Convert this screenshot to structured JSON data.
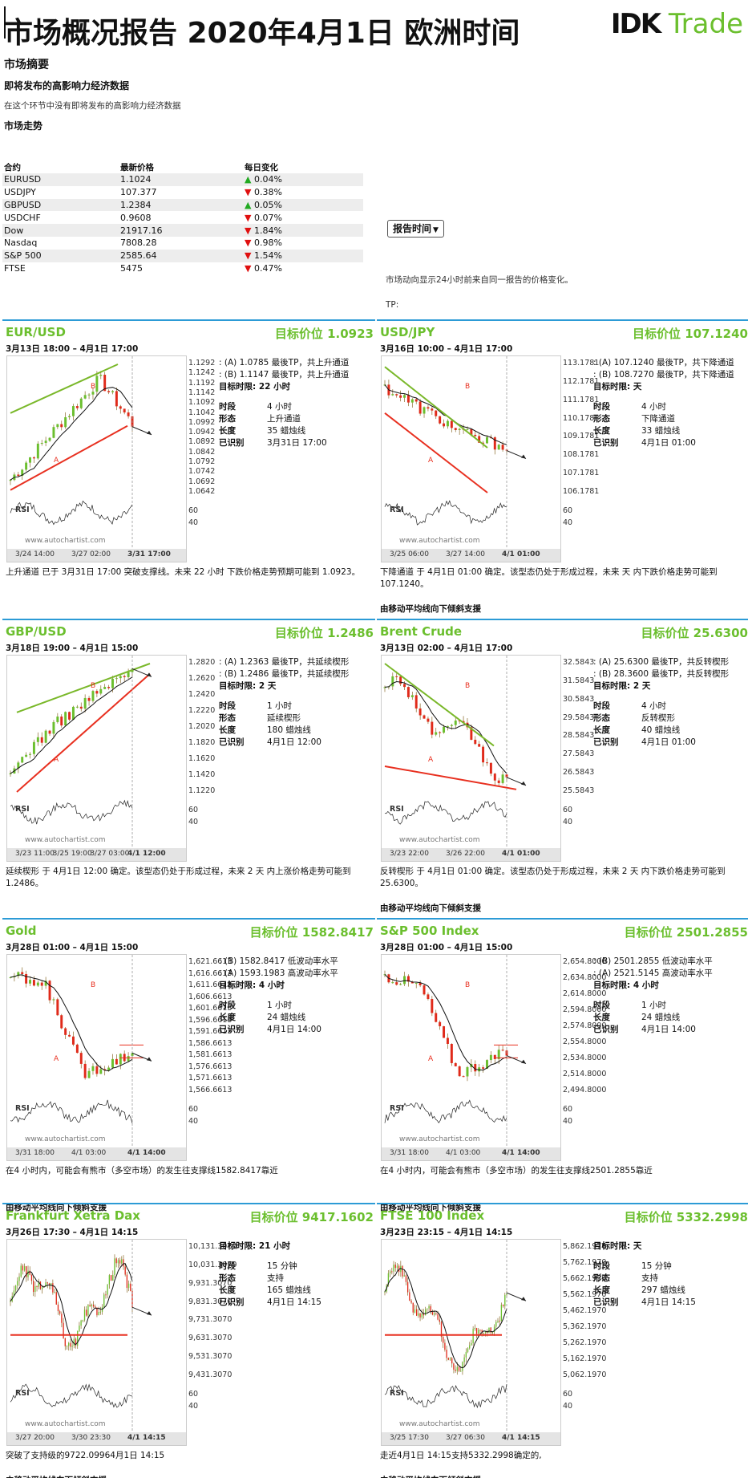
{
  "header": {
    "title": "市场概况报告 2020年4月1日 欧洲时间",
    "logo_mark": "IDK",
    "logo_trade": "Trade"
  },
  "summary": {
    "heading": "市场摘要",
    "econ_heading": "即将发布的高影响力经济数据",
    "econ_note": "在这个环节中没有即将发布的高影响力经济数据",
    "trend_heading": "市场走势",
    "columns": [
      "合约",
      "最新价格",
      "每日变化"
    ],
    "rows": [
      {
        "symbol": "EURUSD",
        "price": "1.1024",
        "dir": "up",
        "arrow": "▲",
        "change": "0.04%"
      },
      {
        "symbol": "USDJPY",
        "price": "107.377",
        "dir": "down",
        "arrow": "▼",
        "change": "0.38%"
      },
      {
        "symbol": "GBPUSD",
        "price": "1.2384",
        "dir": "up",
        "arrow": "▲",
        "change": "0.05%"
      },
      {
        "symbol": "USDCHF",
        "price": "0.9608",
        "dir": "down",
        "arrow": "▼",
        "change": "0.07%"
      },
      {
        "symbol": "Dow",
        "price": "21917.16",
        "dir": "down",
        "arrow": "▼",
        "change": "1.84%"
      },
      {
        "symbol": "Nasdaq",
        "price": "7808.28",
        "dir": "down",
        "arrow": "▼",
        "change": "0.98%"
      },
      {
        "symbol": "S&P 500",
        "price": "2585.64",
        "dir": "down",
        "arrow": "▼",
        "change": "1.54%"
      },
      {
        "symbol": "FTSE",
        "price": "5475",
        "dir": "down",
        "arrow": "▼",
        "change": "0.47%"
      }
    ],
    "report_button": "报告时间",
    "right_note": "市场动向显示24小时前来自同一报告的价格变化。",
    "tp_label": "TP:"
  },
  "panels": [
    {
      "name": "EUR/USD",
      "target": "目标价位 1.0923",
      "range": "3月13日 18:00 – 4月1日 17:00",
      "info_a": ": (A) 1.0785 最後TP，共上升通道",
      "info_b": ": (B) 1.1147 最後TP，共上升通道",
      "horizon": "目标时限: 22 小时",
      "k1": "时段",
      "v1": "4 小时",
      "k2": "形态",
      "v2": "上升通道",
      "k3": "长度",
      "v3": "35 蜡烛线",
      "k4": "已识别",
      "v4": "3月31日 17:00",
      "desc": "上升通道 已于 3月31日 17:00 突破支撑线。未来 22 小时 下跌价格走势预期可能到 1.0923。",
      "bias": "",
      "yticks": [
        "1.1292",
        "1.1242",
        "1.1192",
        "1.1142",
        "1.1092",
        "1.1042",
        "1.0992",
        "1.0942",
        "1.0892",
        "1.0842",
        "1.0792",
        "1.0742",
        "1.0692",
        "1.0642"
      ],
      "rsi_ticks": [
        "60",
        "40"
      ],
      "rsi": "RSI",
      "watermark": "www.autochartist.com",
      "xticks": [
        "3/24 14:00",
        "3/27 02:00",
        "3/31 17:00"
      ],
      "pt_a": "A",
      "pt_b": "B"
    },
    {
      "name": "USD/JPY",
      "target": "目标价位 107.1240",
      "range": "3月16日 10:00 – 4月1日 17:00",
      "info_a": ": (A) 107.1240 最後TP，共下降通道",
      "info_b": ": (B) 108.7270 最後TP，共下降通道",
      "horizon": "目标时限: 天",
      "k1": "时段",
      "v1": "4 小时",
      "k2": "形态",
      "v2": "下降通道",
      "k3": "长度",
      "v3": "33 蜡烛线",
      "k4": "已识别",
      "v4": "4月1日 01:00",
      "desc": "下降通道 于 4月1日 01:00 确定。该型态仍处于形成过程，未来 天 内下跌价格走势可能到 107.1240。",
      "bias": "由移动平均线向下倾斜支援",
      "yticks": [
        "113.1781",
        "112.1781",
        "111.1781",
        "110.1781",
        "109.1781",
        "108.1781",
        "107.1781",
        "106.1781"
      ],
      "rsi_ticks": [
        "60",
        "40"
      ],
      "rsi": "RSI",
      "watermark": "www.autochartist.com",
      "xticks": [
        "3/25 06:00",
        "3/27 14:00",
        "4/1 01:00"
      ],
      "pt_a": "A",
      "pt_b": "B"
    },
    {
      "name": "GBP/USD",
      "target": "目标价位 1.2486",
      "range": "3月18日 19:00 – 4月1日 15:00",
      "info_a": ": (A) 1.2363 最後TP，共延续楔形",
      "info_b": ": (B) 1.2486 最後TP，共延续楔形",
      "horizon": "目标时限: 2 天",
      "k1": "时段",
      "v1": "1 小时",
      "k2": "形态",
      "v2": "延续楔形",
      "k3": "长度",
      "v3": "180 蜡烛线",
      "k4": "已识别",
      "v4": "4月1日 12:00",
      "desc": "延续楔形 于 4月1日 12:00 确定。该型态仍处于形成过程，未来 2 天 内上涨价格走势可能到 1.2486。",
      "bias": "",
      "yticks": [
        "1.2820",
        "1.2620",
        "1.2420",
        "1.2220",
        "1.2020",
        "1.1820",
        "1.1620",
        "1.1420",
        "1.1220"
      ],
      "rsi_ticks": [
        "60",
        "40"
      ],
      "rsi": "RSI",
      "watermark": "www.autochartist.com",
      "xticks": [
        "3/23 11:00",
        "3/25 19:00",
        "3/27 03:00",
        "4/1 12:00"
      ],
      "pt_a": "A",
      "pt_b": "B"
    },
    {
      "name": "Brent Crude",
      "target": "目标价位 25.6300",
      "range": "3月13日 02:00 – 4月1日 17:00",
      "info_a": ": (A) 25.6300 最後TP，共反转楔形",
      "info_b": ": (B) 28.3600 最後TP，共反转楔形",
      "horizon": "目标时限: 2 天",
      "k1": "时段",
      "v1": "4 小时",
      "k2": "形态",
      "v2": "反转楔形",
      "k3": "长度",
      "v3": "40 蜡烛线",
      "k4": "已识别",
      "v4": "4月1日 01:00",
      "desc": "反转楔形 于 4月1日 01:00 确定。该型态仍处于形成过程，未来 2 天 内下跌价格走势可能到 25.6300。",
      "bias": "由移动平均线向下倾斜支援",
      "yticks": [
        "32.5843",
        "31.5843",
        "30.5843",
        "29.5843",
        "28.5843",
        "27.5843",
        "26.5843",
        "25.5843"
      ],
      "rsi_ticks": [
        "60",
        "40"
      ],
      "rsi": "RSI",
      "watermark": "www.autochartist.com",
      "xticks": [
        "3/23 22:00",
        "3/26 22:00",
        "4/1 01:00"
      ],
      "pt_a": "A",
      "pt_b": "B"
    },
    {
      "name": "Gold",
      "target": "目标价位 1582.8417",
      "range": "3月28日 01:00 – 4月1日 15:00",
      "info_a": ": (B) 1582.8417 低波动率水平",
      "info_b": ": (A) 1593.1983 高波动率水平",
      "horizon": "目标时限: 4 小时",
      "k1": "时段",
      "v1": "1 小时",
      "k2": "长度",
      "v2": "24 蜡烛线",
      "k3": "已识别",
      "v3": "4月1日 14:00",
      "k4": "",
      "v4": "",
      "desc": "在4 小时内，可能会有熊市（多空市场）的发生往支撑线1582.8417靠近",
      "bias": "由移动平均线向下倾斜支援",
      "yticks": [
        "1,621.6613",
        "1,616.6613",
        "1,611.6613",
        "1,606.6613",
        "1,601.6613",
        "1,596.6613",
        "1,591.6613",
        "1,586.6613",
        "1,581.6613",
        "1,576.6613",
        "1,571.6613",
        "1,566.6613"
      ],
      "rsi_ticks": [
        "60",
        "40"
      ],
      "rsi": "RSI",
      "watermark": "www.autochartist.com",
      "xticks": [
        "3/31 18:00",
        "4/1 03:00",
        "4/1 14:00"
      ],
      "pt_a": "A",
      "pt_b": "B"
    },
    {
      "name": "S&P 500 Index",
      "target": "目标价位 2501.2855",
      "range": "3月28日 01:00 – 4月1日 15:00",
      "info_a": ": (B) 2501.2855 低波动率水平",
      "info_b": ": (A) 2521.5145 高波动率水平",
      "horizon": "目标时限: 4 小时",
      "k1": "时段",
      "v1": "1 小时",
      "k2": "长度",
      "v2": "24 蜡烛线",
      "k3": "已识别",
      "v3": "4月1日 14:00",
      "k4": "",
      "v4": "",
      "desc": "在4 小时内，可能会有熊市（多空市场）的发生往支撑线2501.2855靠近",
      "bias": "由移动平均线向下倾斜支援",
      "yticks": [
        "2,654.8000",
        "2,634.8000",
        "2,614.8000",
        "2,594.8000",
        "2,574.8000",
        "2,554.8000",
        "2,534.8000",
        "2,514.8000",
        "2,494.8000"
      ],
      "rsi_ticks": [
        "60",
        "40"
      ],
      "rsi": "RSI",
      "watermark": "www.autochartist.com",
      "xticks": [
        "3/31 18:00",
        "4/1 03:00",
        "4/1 14:00"
      ],
      "pt_a": "A",
      "pt_b": "B"
    },
    {
      "name": "Frankfurt Xetra Dax",
      "target": "目标价位 9417.1602",
      "range": "3月26日 17:30 – 4月1日 14:15",
      "info_a": "",
      "info_b": "",
      "horizon": "目标时限: 21 小时",
      "k1": "时段",
      "v1": "15 分钟",
      "k2": "形态",
      "v2": "支持",
      "k3": "长度",
      "v3": "165 蜡烛线",
      "k4": "已识别",
      "v4": "4月1日 14:15",
      "desc": "突破了支持级的9722.09964月1日 14:15",
      "bias": "由移动平均线向下倾斜支援",
      "yticks": [
        "10,131.3070",
        "10,031.3070",
        "9,931.3070",
        "9,831.3070",
        "9,731.3070",
        "9,631.3070",
        "9,531.3070",
        "9,431.3070"
      ],
      "rsi_ticks": [
        "60",
        "40"
      ],
      "rsi": "RSI",
      "watermark": "www.autochartist.com",
      "xticks": [
        "3/27 20:00",
        "3/30 23:30",
        "4/1 14:15"
      ],
      "pt_a": "",
      "pt_b": ""
    },
    {
      "name": "FTSE 100 Index",
      "target": "目标价位 5332.2998",
      "range": "3月23日 23:15 – 4月1日 14:15",
      "info_a": "",
      "info_b": "",
      "horizon": "目标时限: 天",
      "k1": "时段",
      "v1": "15 分钟",
      "k2": "形态",
      "v2": "支持",
      "k3": "长度",
      "v3": "297 蜡烛线",
      "k4": "已识别",
      "v4": "4月1日 14:15",
      "desc": "走近4月1日 14:15支持5332.2998确定的,",
      "bias": "由移动平均线向下倾斜支援",
      "yticks": [
        "5,862.1970",
        "5,762.1970",
        "5,662.1970",
        "5,562.1970",
        "5,462.1970",
        "5,362.1970",
        "5,262.1970",
        "5,162.1970",
        "5,062.1970"
      ],
      "rsi_ticks": [
        "60",
        "40"
      ],
      "rsi": "RSI",
      "watermark": "www.autochartist.com",
      "xticks": [
        "3/25 17:30",
        "3/27 06:30",
        "4/1 14:15"
      ],
      "pt_a": "",
      "pt_b": ""
    }
  ],
  "colors": {
    "accent_green": "#6bbf2e",
    "divider_blue": "#2c9bd6",
    "pattern_red": "#e83020",
    "pattern_green": "#7ab82a"
  }
}
